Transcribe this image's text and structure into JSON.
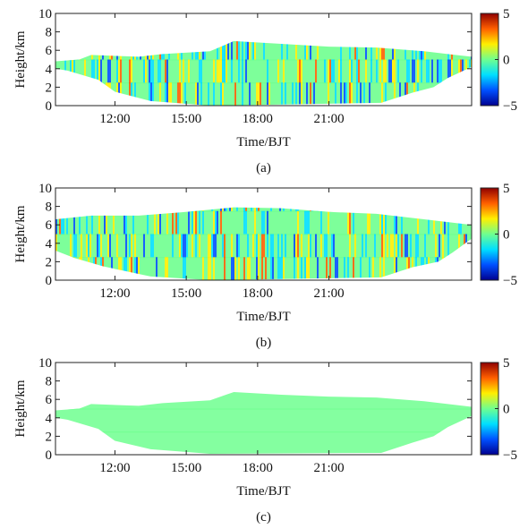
{
  "chart_data": [
    {
      "type": "heatmap",
      "caption": "(a)",
      "xlabel": "Time/BJT",
      "ylabel": "Height/km",
      "xlim": [
        9.5,
        27
      ],
      "xticks": [
        {
          "value": 12,
          "label": "12:00"
        },
        {
          "value": 15,
          "label": "15:00"
        },
        {
          "value": 18,
          "label": "18:00"
        },
        {
          "value": 21,
          "label": "21:00"
        }
      ],
      "ylim": [
        0,
        10
      ],
      "yticks": [
        0,
        2,
        4,
        6,
        8,
        10
      ],
      "clim": [
        -5,
        5
      ],
      "cticks": [
        5,
        0,
        {
          "value": -5,
          "label": "−5"
        }
      ],
      "colormap": [
        "#00008f",
        "#0050ff",
        "#00dfff",
        "#6fff8f",
        "#ffef00",
        "#ff5f00",
        "#8f0000"
      ]
    },
    {
      "type": "heatmap",
      "caption": "(b)",
      "xlabel": "Time/BJT",
      "ylabel": "Height/km",
      "xlim": [
        9.5,
        27
      ],
      "xticks": [
        {
          "value": 12,
          "label": "12:00"
        },
        {
          "value": 15,
          "label": "15:00"
        },
        {
          "value": 18,
          "label": "18:00"
        },
        {
          "value": 21,
          "label": "21:00"
        }
      ],
      "ylim": [
        0,
        10
      ],
      "yticks": [
        0,
        2,
        4,
        6,
        8,
        10
      ],
      "clim": [
        -5,
        5
      ],
      "cticks": [
        5,
        0,
        {
          "value": -5,
          "label": "−5"
        }
      ],
      "colormap": [
        "#00008f",
        "#0050ff",
        "#00dfff",
        "#6fff8f",
        "#ffef00",
        "#ff5f00",
        "#8f0000"
      ]
    },
    {
      "type": "heatmap",
      "caption": "(c)",
      "xlabel": "Time/BJT",
      "ylabel": "Height/km",
      "xlim": [
        9.5,
        27
      ],
      "xticks": [
        {
          "value": 12,
          "label": "12:00"
        },
        {
          "value": 15,
          "label": "15:00"
        },
        {
          "value": 18,
          "label": "18:00"
        },
        {
          "value": 21,
          "label": "21:00"
        }
      ],
      "ylim": [
        0,
        10
      ],
      "yticks": [
        0,
        2,
        4,
        6,
        8,
        10
      ],
      "clim": [
        -5,
        5
      ],
      "cticks": [
        5,
        0,
        {
          "value": -5,
          "label": "−5"
        }
      ],
      "colormap": [
        "#00008f",
        "#0050ff",
        "#00dfff",
        "#6fff8f",
        "#ffef00",
        "#ff5f00",
        "#8f0000"
      ]
    }
  ]
}
